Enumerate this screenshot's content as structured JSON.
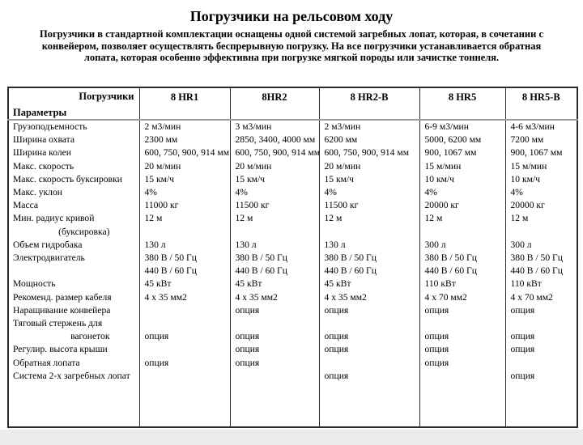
{
  "page": {
    "title": "Погрузчики на рельсовом ходу",
    "intro_lines": [
      "Погрузчики в стандартной комплектации оснащены одной системой загребных лопат, которая, в сочетании с",
      "конвейером, позволяет осуществлять беспрерывную погрузку. На все погрузчики устанавливается обратная",
      "лопата, которая особенно эффективна при погрузке мягкой породы или зачистке тоннеля."
    ]
  },
  "colors": {
    "text": "#000000",
    "table_border": "#2a2a2a",
    "header_rule": "#9a9a9a",
    "background": "#ffffff",
    "outside_strip": "#ececec"
  },
  "table": {
    "corner": {
      "loaders": "Погрузчики",
      "params": "Параметры"
    },
    "columns": [
      "8 HR1",
      "8HR2",
      "8 HR2-B",
      "8 HR5",
      "8 HR5-B"
    ],
    "rows": [
      {
        "label": "Грузоподъемность",
        "indent": false,
        "values": [
          "2 м3/мин",
          "3 м3/мин",
          "2 м3/мин",
          "6-9 м3/мин",
          "4-6 м3/мин"
        ]
      },
      {
        "label": "Ширина охвата",
        "indent": false,
        "values": [
          "2300 мм",
          "2850, 3400, 4000 мм",
          "6200 мм",
          "5000, 6200 мм",
          "7200 мм"
        ]
      },
      {
        "label": "Ширина колеи",
        "indent": false,
        "values": [
          "600, 750, 900, 914 мм",
          "600, 750, 900, 914 мм",
          "600, 750, 900, 914 мм",
          "900, 1067 мм",
          "900, 1067 мм"
        ]
      },
      {
        "label": "Макс. скорость",
        "indent": false,
        "values": [
          "20 м/мин",
          "20 м/мин",
          "20 м/мин",
          "15 м/мин",
          "15 м/мин"
        ]
      },
      {
        "label": "Макс. скорость буксировки",
        "indent": false,
        "values": [
          "15 км/ч",
          "15 км/ч",
          "15 км/ч",
          "10 км/ч",
          "10 км/ч"
        ]
      },
      {
        "label": "Макс. уклон",
        "indent": false,
        "values": [
          "4%",
          "4%",
          "4%",
          "4%",
          "4%"
        ]
      },
      {
        "label": "Масса",
        "indent": false,
        "values": [
          "11000 кг",
          "11500 кг",
          "11500 кг",
          "20000 кг",
          "20000 кг"
        ]
      },
      {
        "label": "Мин. радиус кривой",
        "indent": false,
        "values": [
          "12 м",
          "12 м",
          "12 м",
          "12 м",
          "12 м"
        ]
      },
      {
        "label": "(буксировка)",
        "indent": true,
        "values": [
          "",
          "",
          "",
          "",
          ""
        ]
      },
      {
        "label": "Объем гидробака",
        "indent": false,
        "values": [
          "130 л",
          "130 л",
          "130 л",
          "300 л",
          "300 л"
        ]
      },
      {
        "label": "Электродвигатель",
        "indent": false,
        "values": [
          "380 В / 50 Гц",
          "380 В / 50 Гц",
          "380 В / 50 Гц",
          "380 В / 50 Гц",
          "380 В / 50 Гц"
        ]
      },
      {
        "label": "",
        "indent": false,
        "values": [
          "440 В / 60 Гц",
          "440 В / 60 Гц",
          "440 В / 60 Гц",
          "440 В / 60 Гц",
          "440 В / 60 Гц"
        ]
      },
      {
        "label": "Мощность",
        "indent": false,
        "values": [
          "45 кВт",
          "45 кВт",
          "45 кВт",
          "110 кВт",
          "110 кВт"
        ]
      },
      {
        "label": "Рекоменд. размер кабеля",
        "indent": false,
        "values": [
          "4 x 35 мм2",
          "4 x 35 мм2",
          "4 x 35 мм2",
          "4 x 70 мм2",
          "4 x 70 мм2"
        ]
      },
      {
        "label": "Наращивание конвейера",
        "indent": false,
        "values": [
          "",
          "опция",
          "опция",
          "опция",
          "опция"
        ]
      },
      {
        "label": "Тяговый стержень для",
        "indent": false,
        "values": [
          "",
          "",
          "",
          "",
          ""
        ]
      },
      {
        "label": "вагонеток",
        "indent": true,
        "values": [
          "опция",
          "опция",
          "опция",
          "опция",
          "опция"
        ]
      },
      {
        "label": "Регулир. высота крыши",
        "indent": false,
        "values": [
          "",
          "опция",
          "опция",
          "опция",
          "опция"
        ]
      },
      {
        "label": "Обратная лопата",
        "indent": false,
        "values": [
          "опция",
          "опция",
          "",
          "опция",
          ""
        ]
      },
      {
        "label": "Система 2-х загребных лопат",
        "indent": false,
        "values": [
          "",
          "",
          "опция",
          "",
          "опция"
        ]
      }
    ]
  }
}
